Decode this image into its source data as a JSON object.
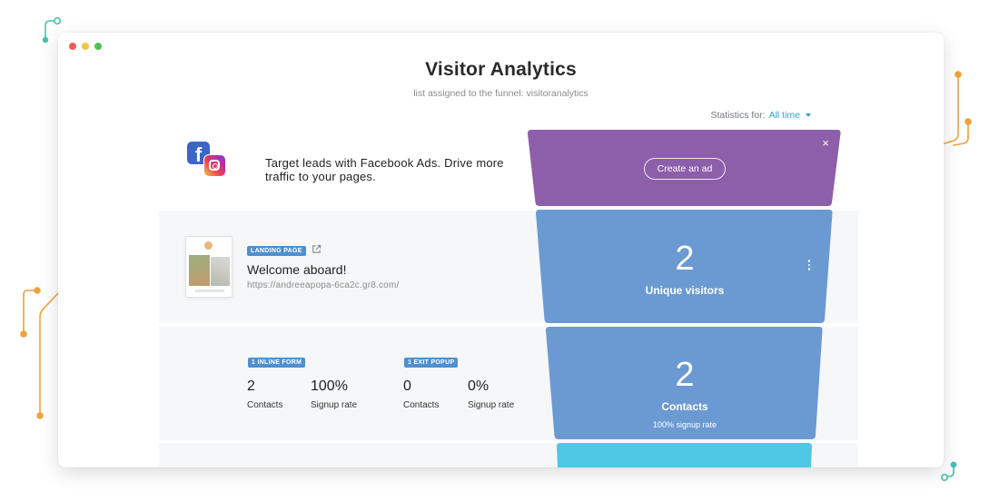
{
  "page": {
    "title": "Visitor Analytics",
    "subtitle": "list assigned to the funnel: visitoranalytics"
  },
  "stats": {
    "label": "Statistics for:",
    "selected": "All time"
  },
  "promo": {
    "text": "Target leads with Facebook Ads. Drive more traffic to your pages.",
    "button": "Create an ad",
    "close": "×",
    "icons": [
      "facebook-icon",
      "instagram-icon"
    ]
  },
  "landing": {
    "badge": "LANDING PAGE",
    "title": "Welcome aboard!",
    "url": "https://andreeapopa-6ca2c.gr8.com/",
    "visitors_value": "2",
    "visitors_label": "Unique visitors"
  },
  "forms": {
    "inline": {
      "badge": "1 INLINE FORM",
      "contacts_value": "2",
      "contacts_label": "Contacts",
      "rate_value": "100%",
      "rate_label": "Signup rate"
    },
    "exit": {
      "badge": "1 EXIT POPUP",
      "contacts_value": "0",
      "contacts_label": "Contacts",
      "rate_value": "0%",
      "rate_label": "Signup rate"
    },
    "funnel_value": "2",
    "funnel_label": "Contacts",
    "funnel_rate": "100% signup rate"
  },
  "colors": {
    "promo_stage": "#8d5ea9",
    "visitors_stage": "#6b9ad2",
    "contacts_stage": "#6b9ad2",
    "next_stage": "#4ec8e4",
    "accent": "#2ea3dc",
    "badge": "#4e8fd0"
  }
}
